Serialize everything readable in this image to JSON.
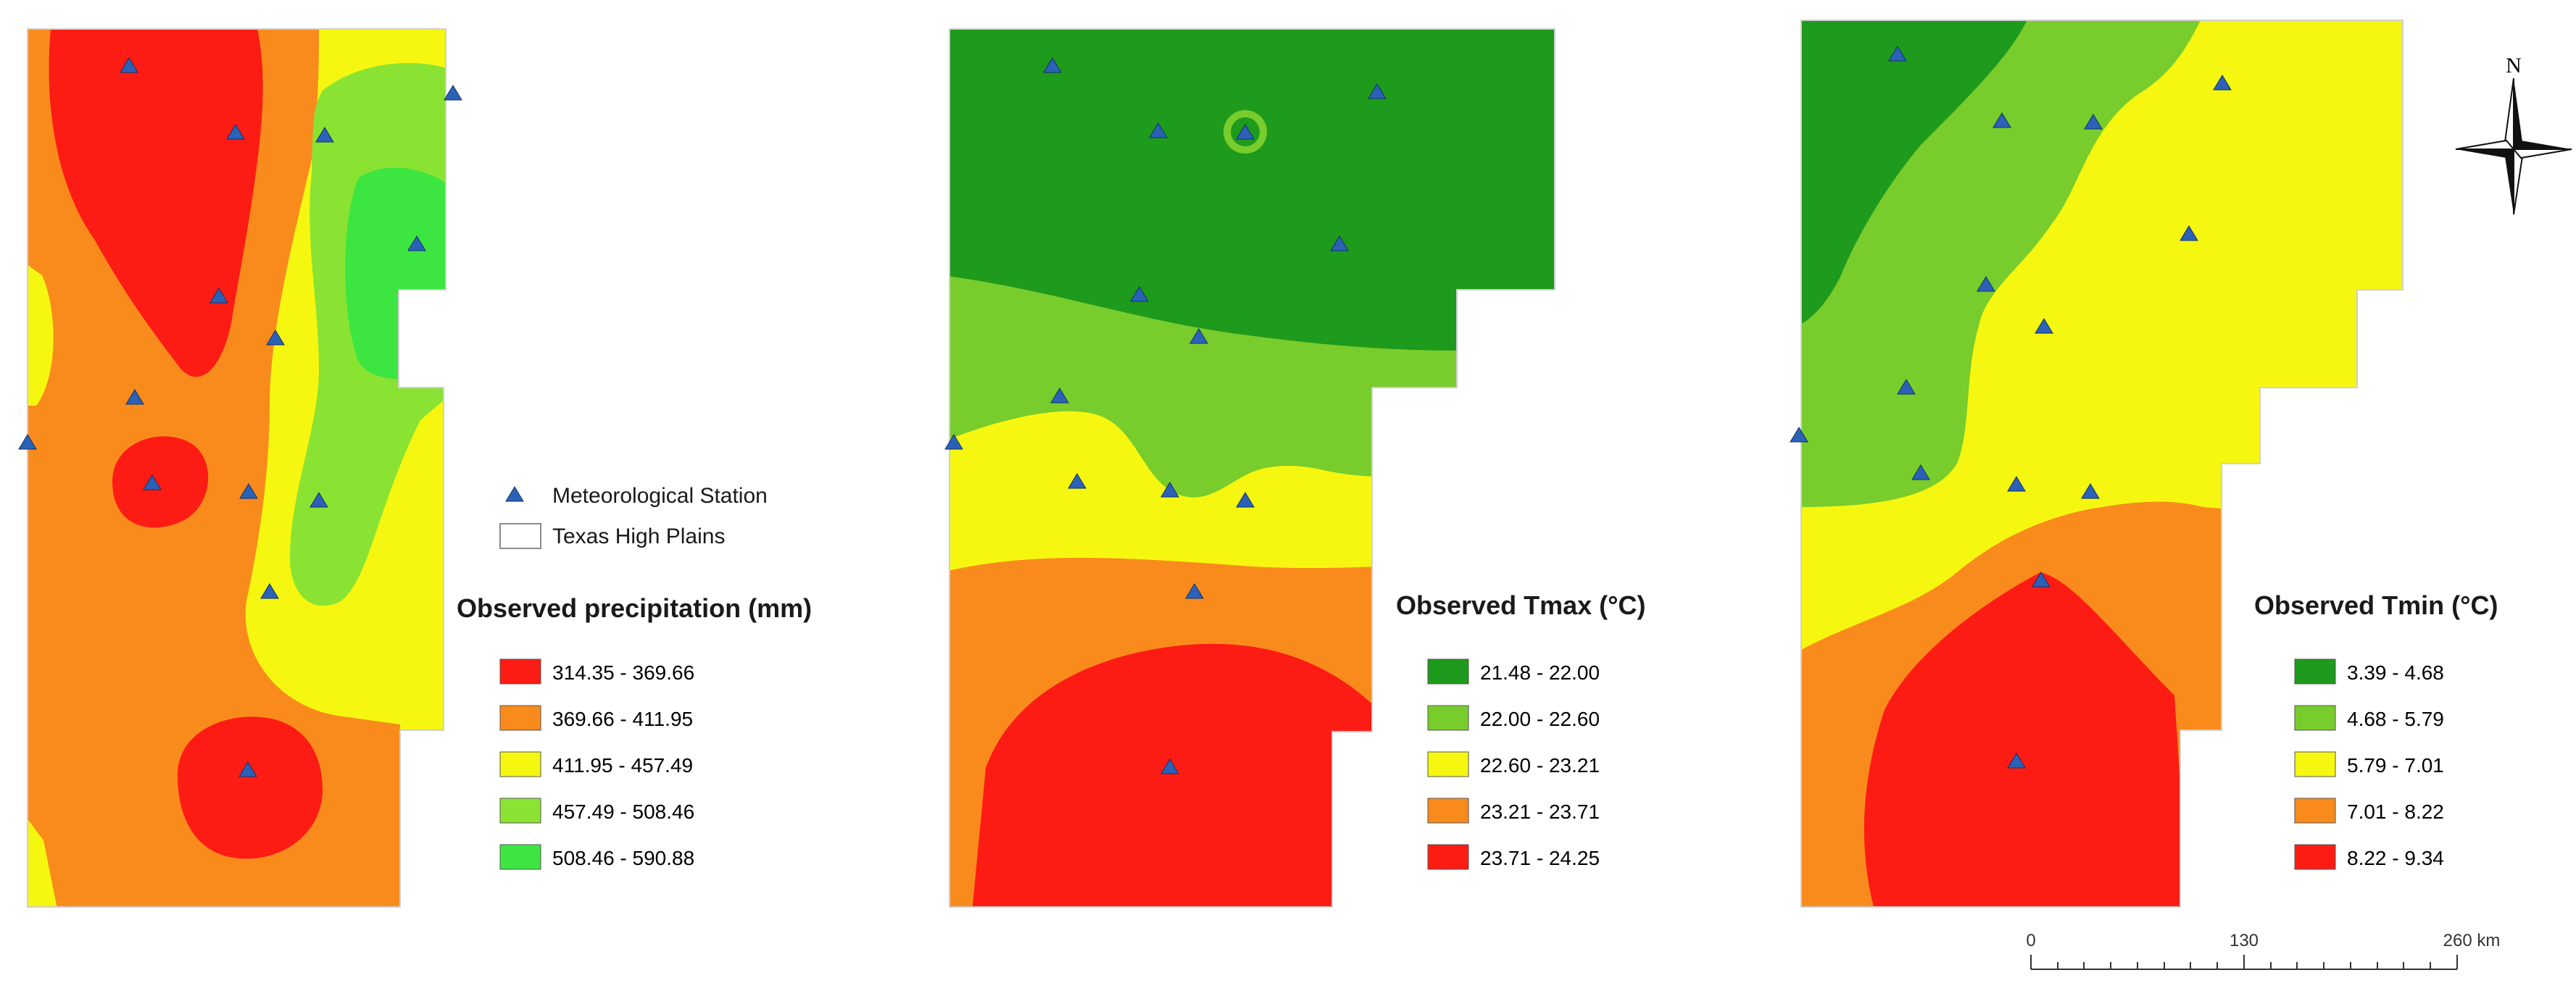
{
  "panels": [
    {
      "id": "precip",
      "title": "Observed precipitation (mm)",
      "classes": [
        {
          "label": "314.35 - 369.66",
          "color": "#fc1c14"
        },
        {
          "label": "369.66 - 411.95",
          "color": "#f98b1c"
        },
        {
          "label": "411.95 - 457.49",
          "color": "#f6f710"
        },
        {
          "label": "457.49 - 508.46",
          "color": "#8ae333"
        },
        {
          "label": "508.46 - 590.88",
          "color": "#3de540"
        }
      ]
    },
    {
      "id": "tmax",
      "title": "Observed Tmax (°C)",
      "classes": [
        {
          "label": "21.48 - 22.00",
          "color": "#1e9a1c"
        },
        {
          "label": "22.00 - 22.60",
          "color": "#78cc2c"
        },
        {
          "label": "22.60 - 23.21",
          "color": "#f6f710"
        },
        {
          "label": "23.21 - 23.71",
          "color": "#f98b1c"
        },
        {
          "label": "23.71 - 24.25",
          "color": "#fc1c14"
        }
      ]
    },
    {
      "id": "tmin",
      "title": "Observed Tmin (°C)",
      "classes": [
        {
          "label": "3.39 - 4.68",
          "color": "#1e9a1c"
        },
        {
          "label": "4.68 - 5.79",
          "color": "#78cc2c"
        },
        {
          "label": "5.79 - 7.01",
          "color": "#f6f710"
        },
        {
          "label": "7.01 - 8.22",
          "color": "#f98b1c"
        },
        {
          "label": "8.22 - 9.34",
          "color": "#fc1c14"
        }
      ]
    }
  ],
  "legend": {
    "station_label": "Meteorological Station",
    "region_label": "Texas High Plains",
    "station_color": "#2b62b8"
  },
  "north_arrow": {
    "label": "N"
  },
  "scale_bar": {
    "labels": [
      "0",
      "130",
      "260 km"
    ]
  }
}
